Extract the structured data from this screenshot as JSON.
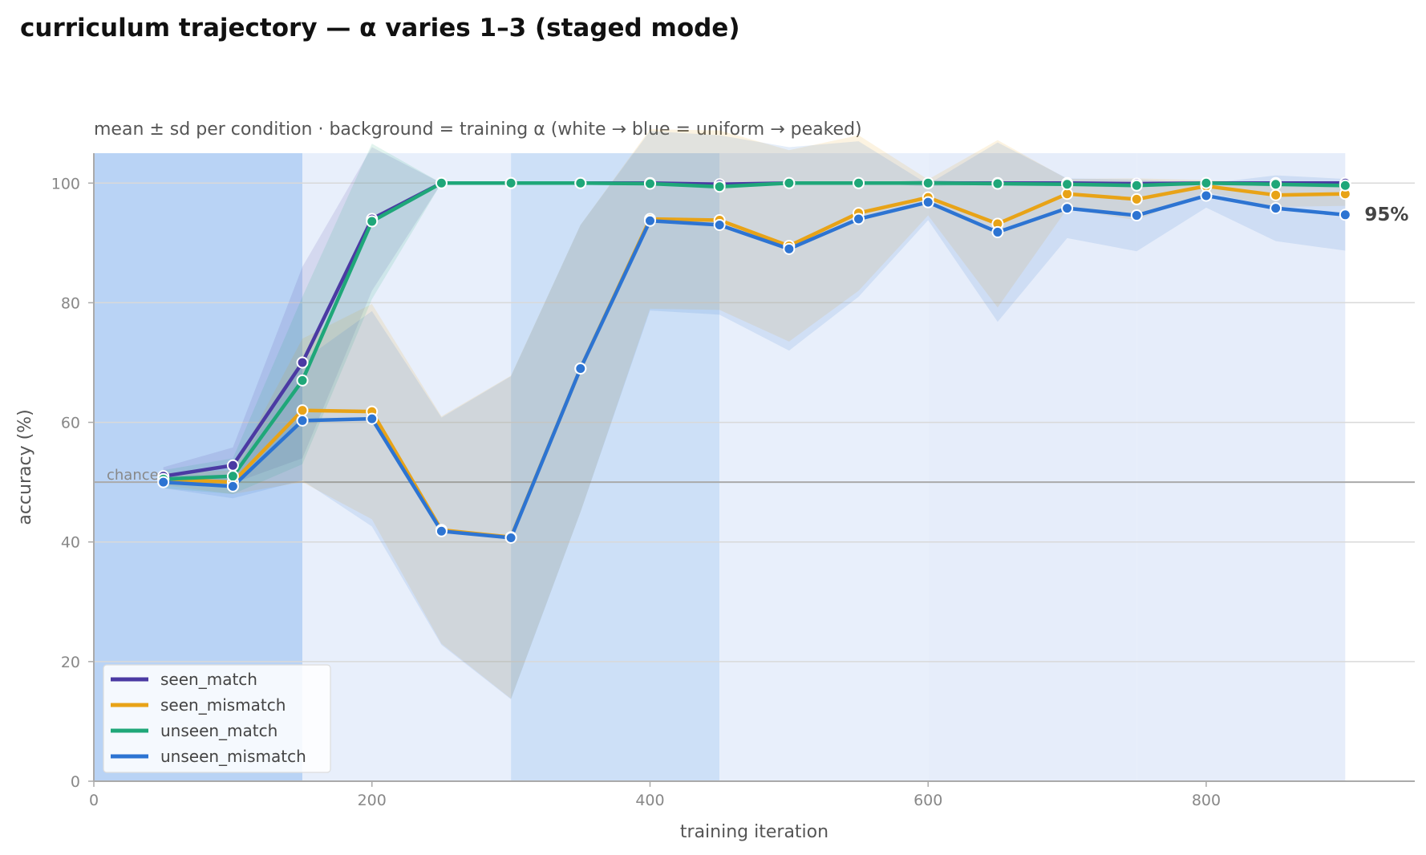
{
  "chart_data": {
    "type": "line",
    "title": "curriculum trajectory — α varies 1–3 (staged mode)",
    "subtitle": "mean ± sd per condition · background = training α (white → blue = uniform → peaked)",
    "xlabel": "training iteration",
    "ylabel": "accuracy (%)",
    "xlim": [
      0,
      950
    ],
    "ylim": [
      0,
      105
    ],
    "x_ticks": [
      0,
      200,
      400,
      600,
      800
    ],
    "y_ticks": [
      0,
      20,
      40,
      60,
      80,
      100
    ],
    "grid": "horizontal",
    "legend_position": "bottom-left",
    "chance_level": 50,
    "chance_label": "chance",
    "end_label": "95%",
    "background_bands": [
      {
        "x_start": 0,
        "x_end": 150,
        "color": "#b9d3f5"
      },
      {
        "x_start": 150,
        "x_end": 300,
        "color": "#e8effb"
      },
      {
        "x_start": 300,
        "x_end": 450,
        "color": "#cde0f7"
      },
      {
        "x_start": 450,
        "x_end": 600,
        "color": "#e8effb"
      },
      {
        "x_start": 600,
        "x_end": 750,
        "color": "#e6edfa"
      },
      {
        "x_start": 750,
        "x_end": 900,
        "color": "#e6edfa"
      }
    ],
    "x": [
      50,
      100,
      150,
      200,
      250,
      300,
      350,
      400,
      450,
      500,
      550,
      600,
      650,
      700,
      750,
      800,
      850,
      900
    ],
    "series": [
      {
        "name": "seen_match",
        "color": "#4b3aa3",
        "values": [
          51,
          52.8,
          70,
          94,
          100,
          100,
          100,
          100,
          99.8,
          100,
          100,
          100,
          100,
          100,
          99.9,
          100,
          100,
          100
        ],
        "sd": [
          1.5,
          3,
          16,
          12,
          0,
          0,
          0,
          0,
          0.4,
          0,
          0,
          0.5,
          0,
          0.3,
          0.3,
          0,
          0.3,
          0
        ]
      },
      {
        "name": "seen_mismatch",
        "color": "#e8a317",
        "values": [
          50.5,
          50,
          62,
          61.8,
          42,
          40.8,
          69,
          94,
          93.8,
          89.5,
          95,
          97.6,
          93.2,
          98.2,
          97.3,
          99.5,
          98,
          98.2
        ],
        "sd": [
          1,
          2,
          12,
          18,
          19,
          27,
          24,
          15,
          15,
          16,
          13,
          3,
          14,
          2.5,
          3.5,
          1,
          2,
          2
        ]
      },
      {
        "name": "unseen_match",
        "color": "#1fa779",
        "values": [
          50.5,
          51,
          67,
          93.6,
          100,
          100,
          100,
          99.9,
          99.4,
          100,
          100,
          100,
          99.9,
          99.8,
          99.6,
          100,
          99.8,
          99.6
        ],
        "sd": [
          1.5,
          3,
          14,
          13,
          0,
          0,
          0,
          0,
          0.5,
          0,
          0,
          0.5,
          0.2,
          0.3,
          0.4,
          0,
          0.4,
          0.4
        ]
      },
      {
        "name": "unseen_mismatch",
        "color": "#2d74d2",
        "values": [
          50,
          49.3,
          60.3,
          60.6,
          41.8,
          40.7,
          69,
          93.7,
          93,
          89,
          94,
          96.8,
          91.8,
          95.8,
          94.6,
          97.9,
          95.8,
          94.7
        ],
        "sd": [
          1,
          2,
          10,
          18,
          19,
          27,
          24,
          15,
          15,
          17,
          13,
          3,
          15,
          5,
          6,
          2,
          5.5,
          6
        ]
      }
    ]
  }
}
